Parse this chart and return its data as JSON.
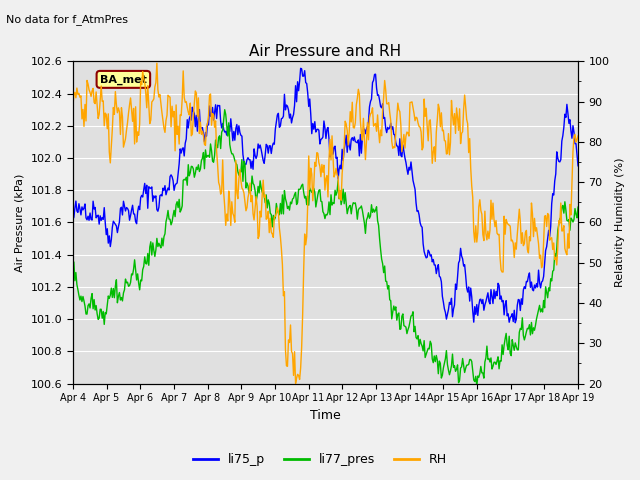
{
  "title": "Air Pressure and RH",
  "subtitle": "No data for f_AtmPres",
  "xlabel": "Time",
  "ylabel_left": "Air Pressure (kPa)",
  "ylabel_right": "Relativity Humidity (%)",
  "ylim_left": [
    100.6,
    102.6
  ],
  "ylim_right": [
    20,
    100
  ],
  "yticks_left": [
    100.6,
    100.8,
    101.0,
    101.2,
    101.4,
    101.6,
    101.8,
    102.0,
    102.2,
    102.4,
    102.6
  ],
  "yticks_right": [
    20,
    30,
    40,
    50,
    60,
    70,
    80,
    90,
    100
  ],
  "xtick_labels": [
    "Apr 4",
    "Apr 5",
    "Apr 6",
    "Apr 7",
    "Apr 8",
    "Apr 9",
    "Apr 10",
    "Apr 11",
    "Apr 12",
    "Apr 13",
    "Apr 14",
    "Apr 15",
    "Apr 16",
    "Apr 17",
    "Apr 18",
    "Apr 19"
  ],
  "color_li75": "#0000ff",
  "color_li77": "#00bb00",
  "color_rh": "#ffa500",
  "fig_bg": "#f0f0f0",
  "plot_bg": "#e0e0e0",
  "grid_color": "#ffffff",
  "legend_labels": [
    "li75_p",
    "li77_pres",
    "RH"
  ],
  "ba_met_label": "BA_met",
  "ba_met_bg": "#ffff99",
  "ba_met_border": "#8b0000",
  "n_days": 15,
  "n_points": 500,
  "seed": 42
}
